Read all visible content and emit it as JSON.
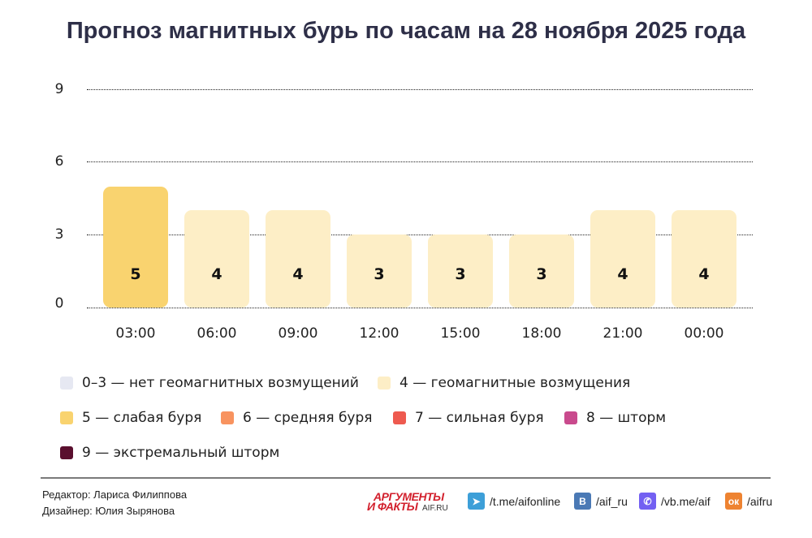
{
  "title": "Прогноз магнитных бурь по часам на 28 ноября 2025 года",
  "chart_data": {
    "type": "bar",
    "title": "Прогноз магнитных бурь по часам на 28 ноября 2025 года",
    "xlabel": "",
    "ylabel": "",
    "ylim": [
      0,
      9
    ],
    "yticks": [
      0,
      3,
      6,
      9
    ],
    "grid": "horizontal dotted",
    "categories": [
      "03:00",
      "06:00",
      "09:00",
      "12:00",
      "15:00",
      "18:00",
      "21:00",
      "00:00"
    ],
    "values": [
      5,
      4,
      4,
      3,
      3,
      3,
      4,
      4
    ],
    "bar_colors": [
      "#f9d36f",
      "#fdeec6",
      "#fdeec6",
      "#fdeec6",
      "#fdeec6",
      "#fdeec6",
      "#fdeec6",
      "#fdeec6"
    ],
    "legend": [
      {
        "label": "0–3 — нет геомагнитных возмущений",
        "color": "#e6e8f2"
      },
      {
        "label": "4 — геомагнитные возмущения",
        "color": "#fdeec6"
      },
      {
        "label": "5 — слабая буря",
        "color": "#f9d36f"
      },
      {
        "label": "6 — средняя буря",
        "color": "#f8935f"
      },
      {
        "label": "7 — сильная буря",
        "color": "#ee5a4f"
      },
      {
        "label": "8 — шторм",
        "color": "#c94a8d"
      },
      {
        "label": "9 — экстремальный шторм",
        "color": "#5a0f2e"
      }
    ],
    "legend_position": "bottom"
  },
  "axis": {
    "y0": "0",
    "y3": "3",
    "y6": "6",
    "y9": "9"
  },
  "bars": [
    {
      "label": "5",
      "time": "03:00"
    },
    {
      "label": "4",
      "time": "06:00"
    },
    {
      "label": "4",
      "time": "09:00"
    },
    {
      "label": "3",
      "time": "12:00"
    },
    {
      "label": "3",
      "time": "15:00"
    },
    {
      "label": "3",
      "time": "18:00"
    },
    {
      "label": "4",
      "time": "21:00"
    },
    {
      "label": "4",
      "time": "00:00"
    }
  ],
  "footer": {
    "editor": "Редактор: Лариса Филиппова",
    "designer": "Дизайнер: Юлия Зырянова",
    "logo_line1": "АРГУМЕНТЫ",
    "logo_line2": "И ФАКТЫ",
    "logo_site": "AIF.RU",
    "socials": [
      {
        "icon": "telegram-icon",
        "glyph": "➤",
        "text": "/t.me/aifonline",
        "color": "#3d9fd8"
      },
      {
        "icon": "vk-icon",
        "glyph": "В",
        "text": "/aif_ru",
        "color": "#4a79b5"
      },
      {
        "icon": "viber-icon",
        "glyph": "✆",
        "text": "/vb.me/aif",
        "color": "#7360f2"
      },
      {
        "icon": "odnoklassniki-icon",
        "glyph": "ок",
        "text": "/aifru",
        "color": "#ee8331"
      }
    ]
  }
}
